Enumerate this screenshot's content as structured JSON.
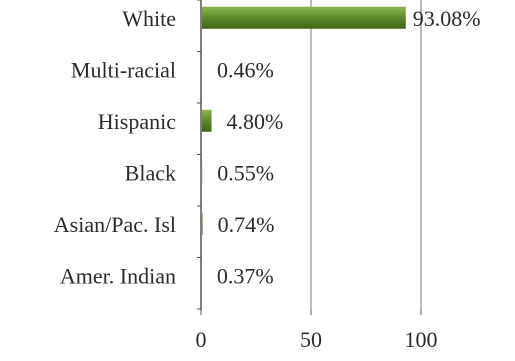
{
  "chart_data": {
    "type": "bar",
    "orientation": "horizontal",
    "categories": [
      "White",
      "Multi-racial",
      "Hispanic",
      "Black",
      "Asian/Pac. Isl",
      "Amer. Indian"
    ],
    "values": [
      93.08,
      0.46,
      4.8,
      0.55,
      0.74,
      0.37
    ],
    "value_labels": [
      "93.08%",
      "0.46%",
      "4.80%",
      "0.55%",
      "0.74%",
      "0.37%"
    ],
    "xlim": [
      0,
      100
    ],
    "x_ticks": [
      0,
      50,
      100
    ],
    "x_tick_labels": [
      "0",
      "50",
      "100"
    ],
    "grid": "vertical",
    "legend": "none",
    "colors": {
      "bar": "#5f8a2a",
      "bar_highlight": "#8cb64c",
      "axis": "#555555",
      "grid": "#777777",
      "text": "#2b2b2b"
    }
  }
}
